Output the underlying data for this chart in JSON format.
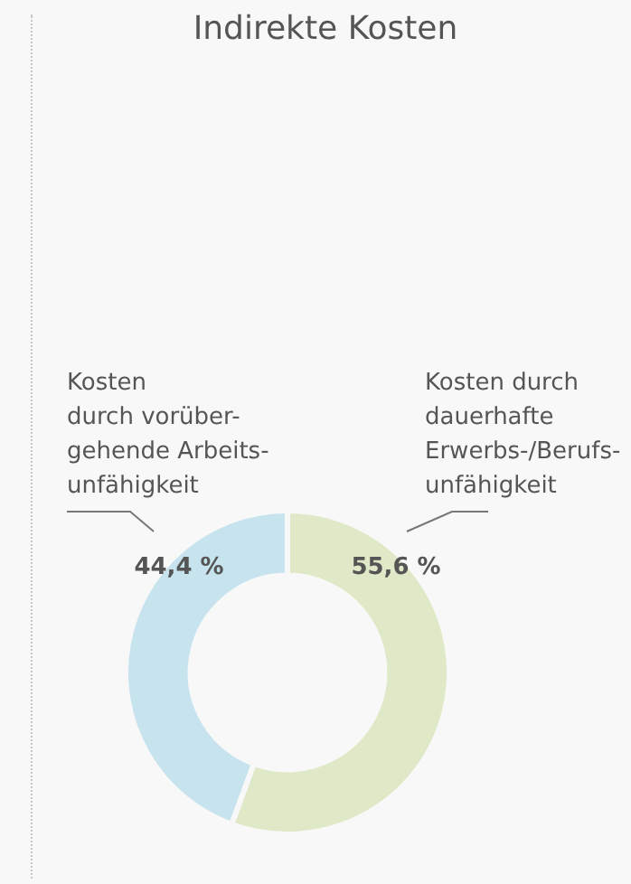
{
  "chart_data": {
    "type": "donut",
    "title": "Indirekte Kosten",
    "categories": [
      "Kosten\ndurch vorüber-\ngehende Arbeits-\nunfähigkeit",
      "Kosten durch\ndauerhafte\nErwerbs-/Berufs-\nunfähigkeit"
    ],
    "values": [
      44.4,
      55.6
    ],
    "colors": [
      "#c6e3ee",
      "#dfe9c8"
    ],
    "value_labels": [
      "44,4 %",
      "55,6 %"
    ],
    "legend": false
  }
}
